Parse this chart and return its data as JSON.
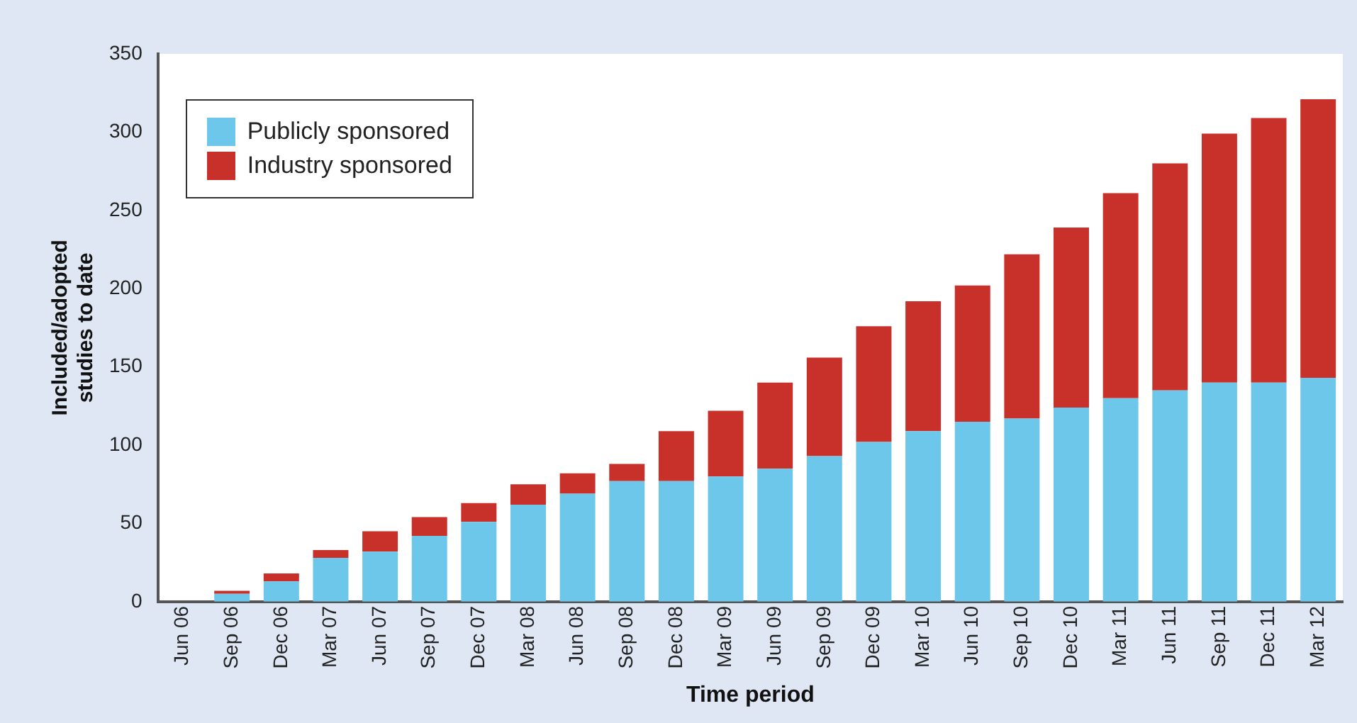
{
  "chart_data": {
    "type": "bar",
    "stacked": true,
    "xlabel": "Time period",
    "ylabel": "Included/adopted studies to date",
    "categories": [
      "Jun 06",
      "Sep 06",
      "Dec 06",
      "Mar 07",
      "Jun 07",
      "Sep 07",
      "Dec 07",
      "Mar 08",
      "Jun 08",
      "Sep 08",
      "Dec 08",
      "Mar 09",
      "Jun 09",
      "Sep 09",
      "Dec 09",
      "Mar 10",
      "Jun 10",
      "Sep 10",
      "Dec 10",
      "Mar 11",
      "Jun 11",
      "Sep 11",
      "Dec 11",
      "Mar 12"
    ],
    "series": [
      {
        "name": "Publicly sponsored",
        "color": "#6cc7ea",
        "values": [
          0,
          5,
          13,
          28,
          32,
          42,
          51,
          62,
          69,
          77,
          77,
          80,
          85,
          93,
          102,
          109,
          115,
          117,
          124,
          130,
          135,
          140,
          140,
          143
        ]
      },
      {
        "name": "Industry sponsored",
        "color": "#c8302a",
        "values": [
          0,
          2,
          5,
          5,
          13,
          12,
          12,
          13,
          13,
          11,
          32,
          42,
          55,
          63,
          74,
          83,
          87,
          105,
          115,
          131,
          145,
          159,
          169,
          178
        ]
      }
    ],
    "ylim": [
      0,
      350
    ],
    "yticks": [
      0,
      50,
      100,
      150,
      200,
      250,
      300,
      350
    ],
    "grid": false,
    "legend": "top left"
  }
}
